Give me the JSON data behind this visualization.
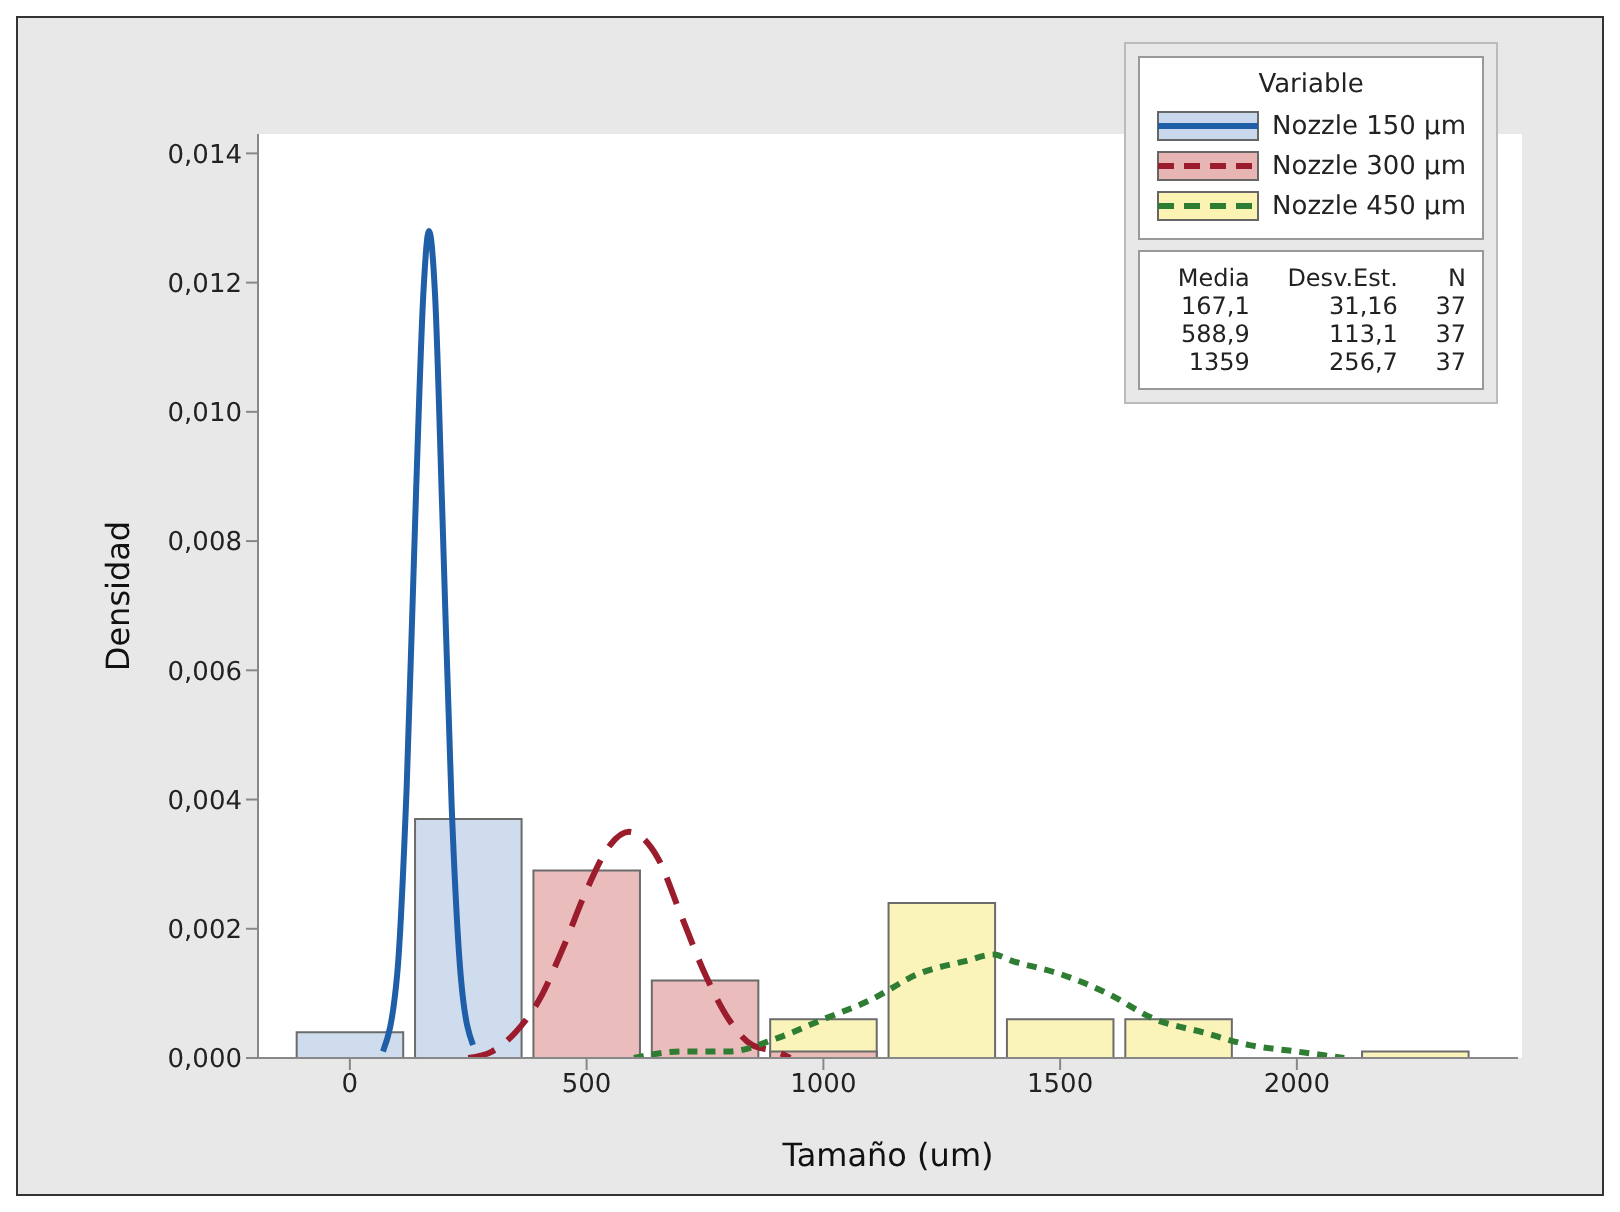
{
  "chart_data": {
    "type": "histogram",
    "xlabel": "Tamaño (um)",
    "ylabel": "Densidad",
    "legend_title": "Variable",
    "legend": "top right",
    "grid": false,
    "xlim": [
      -194,
      2467
    ],
    "xticks": [
      0,
      500,
      1000,
      1500,
      2000
    ],
    "ylim": [
      0,
      0.0143
    ],
    "yticks": [
      {
        "value": 0,
        "label": "0,000"
      },
      {
        "value": 0.002,
        "label": "0,002"
      },
      {
        "value": 0.004,
        "label": "0,004"
      },
      {
        "value": 0.006,
        "label": "0,006"
      },
      {
        "value": 0.008,
        "label": "0,008"
      },
      {
        "value": 0.01,
        "label": "0,010"
      },
      {
        "value": 0.012,
        "label": "0,012"
      },
      {
        "value": 0.014,
        "label": "0,014"
      }
    ],
    "bins": [
      -125,
      125,
      375,
      625,
      875,
      1125,
      1375,
      1625,
      1875,
      2125,
      2375
    ],
    "series": [
      {
        "name": "Nozzle 150 µm",
        "color": "#c9d8ec",
        "values": [
          0.0004,
          0.0037,
          0,
          0,
          0,
          0,
          0,
          0,
          0,
          0
        ]
      },
      {
        "name": "Nozzle 300 µm",
        "color": "#e8b5b5",
        "values": [
          0,
          0,
          0.0029,
          0.0012,
          0.0001,
          0,
          0,
          0,
          0,
          0
        ]
      },
      {
        "name": "Nozzle 450 µm",
        "color": "#fbf3b2",
        "values": [
          0,
          0,
          0,
          0,
          0.0006,
          0.0024,
          0.0006,
          0.0006,
          0,
          0.0001
        ]
      },
      {
        "type": "line",
        "color": "#1f5fa8",
        "line_style": "solid",
        "x": [
          70,
          100,
          120,
          140,
          155,
          167,
          180,
          195,
          215,
          235,
          260
        ],
        "values": [
          0.0001,
          0.0013,
          0.0042,
          0.0088,
          0.0118,
          0.0128,
          0.0118,
          0.0085,
          0.0039,
          0.0012,
          0.0002
        ]
      },
      {
        "type": "line",
        "color": "#9b1c2c",
        "line_style": "dashed",
        "x": [
          250,
          300,
          350,
          400,
          450,
          500,
          550,
          589,
          650,
          700,
          750,
          800,
          850,
          900,
          930
        ],
        "values": [
          0,
          0.0001,
          0.0004,
          0.0009,
          0.0017,
          0.0026,
          0.0033,
          0.0035,
          0.0031,
          0.0022,
          0.0013,
          0.0006,
          0.0002,
          0.0001,
          0
        ]
      },
      {
        "type": "line",
        "color": "#2e7d32",
        "line_style": "dotted",
        "x": [
          600,
          700,
          800,
          900,
          1000,
          1100,
          1200,
          1300,
          1359,
          1400,
          1500,
          1600,
          1700,
          1800,
          1900,
          2000,
          2100
        ],
        "values": [
          0,
          0.0001,
          0.0001,
          0.0003,
          0.0006,
          0.0009,
          0.0013,
          0.0015,
          0.0016,
          0.0015,
          0.0013,
          0.001,
          0.0006,
          0.0004,
          0.0002,
          0.0001,
          0
        ]
      }
    ],
    "annotations": [
      "Media",
      "Desv.Est.",
      "N",
      "167,1",
      "31,16",
      "37",
      "588,9",
      "113,1",
      "37",
      "1359",
      "256,7",
      "37"
    ]
  }
}
